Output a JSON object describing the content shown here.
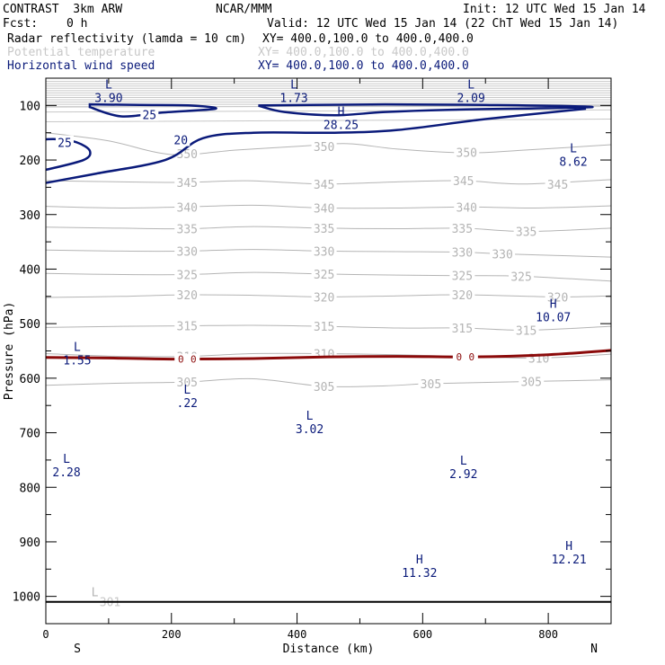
{
  "header": {
    "title_left": "CONTRAST  3km ARW",
    "title_center": "NCAR/MMM",
    "init": "Init: 12 UTC Wed 15 Jan 14",
    "fcst_label": "Fcst:",
    "fcst_value": "0 h",
    "valid": "Valid: 12 UTC Wed 15 Jan 14 (22 ChT Wed 15 Jan 14)",
    "fields": [
      {
        "name": "Radar reflectivity (lamda = 10 cm)",
        "xy": "XY= 400.0,100.0 to 400.0,400.0",
        "color": "#000000"
      },
      {
        "name": "Potential temperature",
        "xy": "XY= 400.0,100.0 to 400.0,400.0",
        "color": "#c8c8c8"
      },
      {
        "name": "Horizontal wind speed",
        "xy": "XY= 400.0,100.0 to 400.0,400.0",
        "color": "#0a1a7a"
      }
    ]
  },
  "colors": {
    "theta": "#b4b4b4",
    "wind": "#0a1a7a",
    "reflectivity": "#8b0a0a",
    "frame": "#000000"
  },
  "chart_data": {
    "type": "contour",
    "xlabel": "Distance (km)",
    "ylabel": "Pressure (hPa)",
    "xlim": [
      0,
      900
    ],
    "ylim": [
      1050,
      50
    ],
    "x_ticks": [
      0,
      200,
      400,
      600,
      800
    ],
    "y_ticks": [
      100,
      200,
      300,
      400,
      500,
      600,
      700,
      800,
      900,
      1000
    ],
    "x_end_labels": {
      "left": "S",
      "right": "N"
    },
    "theta_contours": [
      {
        "value": 350,
        "labels": [
          {
            "x": 225,
            "p": 188,
            "text": "350"
          },
          {
            "x": 443,
            "p": 175,
            "text": "350"
          },
          {
            "x": 670,
            "p": 186,
            "text": "350"
          }
        ],
        "line": [
          [
            0,
            150
          ],
          [
            100,
            165
          ],
          [
            200,
            190
          ],
          [
            300,
            182
          ],
          [
            400,
            175
          ],
          [
            480,
            170
          ],
          [
            560,
            180
          ],
          [
            670,
            187
          ],
          [
            760,
            182
          ],
          [
            900,
            172
          ]
        ]
      },
      {
        "value": 345,
        "labels": [
          {
            "x": 225,
            "p": 241,
            "text": "345"
          },
          {
            "x": 443,
            "p": 244,
            "text": "345"
          },
          {
            "x": 665,
            "p": 238,
            "text": "345"
          },
          {
            "x": 815,
            "p": 244,
            "text": "345"
          }
        ],
        "line": [
          [
            0,
            238
          ],
          [
            120,
            240
          ],
          [
            225,
            241
          ],
          [
            320,
            238
          ],
          [
            443,
            244
          ],
          [
            560,
            240
          ],
          [
            665,
            238
          ],
          [
            760,
            244
          ],
          [
            900,
            236
          ]
        ]
      },
      {
        "value": 340,
        "labels": [
          {
            "x": 225,
            "p": 286,
            "text": "340"
          },
          {
            "x": 443,
            "p": 288,
            "text": "340"
          },
          {
            "x": 670,
            "p": 286,
            "text": "340"
          }
        ],
        "line": [
          [
            0,
            285
          ],
          [
            120,
            288
          ],
          [
            225,
            286
          ],
          [
            330,
            283
          ],
          [
            443,
            288
          ],
          [
            560,
            288
          ],
          [
            670,
            286
          ],
          [
            780,
            288
          ],
          [
            900,
            284
          ]
        ]
      },
      {
        "value": 335,
        "labels": [
          {
            "x": 225,
            "p": 326,
            "text": "335"
          },
          {
            "x": 443,
            "p": 325,
            "text": "335"
          },
          {
            "x": 663,
            "p": 325,
            "text": "335"
          },
          {
            "x": 765,
            "p": 331,
            "text": "335"
          }
        ],
        "line": [
          [
            0,
            323
          ],
          [
            120,
            325
          ],
          [
            225,
            326
          ],
          [
            330,
            322
          ],
          [
            443,
            325
          ],
          [
            560,
            326
          ],
          [
            663,
            325
          ],
          [
            765,
            331
          ],
          [
            900,
            325
          ]
        ]
      },
      {
        "value": 330,
        "labels": [
          {
            "x": 225,
            "p": 367,
            "text": "330"
          },
          {
            "x": 443,
            "p": 367,
            "text": "330"
          },
          {
            "x": 663,
            "p": 369,
            "text": "330"
          },
          {
            "x": 727,
            "p": 372,
            "text": "330"
          }
        ],
        "line": [
          [
            0,
            365
          ],
          [
            120,
            367
          ],
          [
            225,
            367
          ],
          [
            330,
            364
          ],
          [
            443,
            367
          ],
          [
            560,
            368
          ],
          [
            663,
            369
          ],
          [
            727,
            372
          ],
          [
            900,
            378
          ]
        ]
      },
      {
        "value": 325,
        "labels": [
          {
            "x": 225,
            "p": 410,
            "text": "325"
          },
          {
            "x": 443,
            "p": 409,
            "text": "325"
          },
          {
            "x": 663,
            "p": 412,
            "text": "325"
          },
          {
            "x": 757,
            "p": 413,
            "text": "325"
          }
        ],
        "line": [
          [
            0,
            408
          ],
          [
            120,
            410
          ],
          [
            225,
            410
          ],
          [
            330,
            406
          ],
          [
            443,
            409
          ],
          [
            560,
            411
          ],
          [
            663,
            412
          ],
          [
            757,
            413
          ],
          [
            900,
            422
          ]
        ]
      },
      {
        "value": 320,
        "labels": [
          {
            "x": 225,
            "p": 447,
            "text": "320"
          },
          {
            "x": 443,
            "p": 451,
            "text": "320"
          },
          {
            "x": 663,
            "p": 447,
            "text": "320"
          },
          {
            "x": 815,
            "p": 451,
            "text": "320"
          }
        ],
        "line": [
          [
            0,
            452
          ],
          [
            120,
            450
          ],
          [
            225,
            447
          ],
          [
            330,
            448
          ],
          [
            443,
            451
          ],
          [
            560,
            449
          ],
          [
            663,
            447
          ],
          [
            815,
            451
          ],
          [
            900,
            449
          ]
        ]
      },
      {
        "value": 315,
        "labels": [
          {
            "x": 225,
            "p": 504,
            "text": "315"
          },
          {
            "x": 443,
            "p": 505,
            "text": "315"
          },
          {
            "x": 663,
            "p": 508,
            "text": "315"
          },
          {
            "x": 765,
            "p": 512,
            "text": "315"
          }
        ],
        "line": [
          [
            0,
            507
          ],
          [
            120,
            505
          ],
          [
            225,
            504
          ],
          [
            330,
            503
          ],
          [
            443,
            505
          ],
          [
            560,
            508
          ],
          [
            663,
            508
          ],
          [
            765,
            512
          ],
          [
            900,
            505
          ]
        ]
      },
      {
        "value": 310,
        "labels": [
          {
            "x": 225,
            "p": 560,
            "text": "310"
          },
          {
            "x": 443,
            "p": 555,
            "text": "310"
          },
          {
            "x": 785,
            "p": 563,
            "text": "310"
          }
        ],
        "line": [
          [
            0,
            555
          ],
          [
            120,
            560
          ],
          [
            225,
            560
          ],
          [
            330,
            555
          ],
          [
            443,
            555
          ],
          [
            560,
            557
          ],
          [
            663,
            560
          ],
          [
            785,
            563
          ],
          [
            900,
            556
          ]
        ]
      },
      {
        "value": 305,
        "labels": [
          {
            "x": 225,
            "p": 607,
            "text": "305"
          },
          {
            "x": 443,
            "p": 615,
            "text": "305"
          },
          {
            "x": 613,
            "p": 610,
            "text": "305"
          },
          {
            "x": 773,
            "p": 606,
            "text": "305"
          }
        ],
        "line": [
          [
            0,
            613
          ],
          [
            120,
            609
          ],
          [
            225,
            607
          ],
          [
            330,
            601
          ],
          [
            443,
            615
          ],
          [
            540,
            614
          ],
          [
            613,
            610
          ],
          [
            773,
            606
          ],
          [
            900,
            603
          ]
        ]
      }
    ],
    "theta_low": {
      "x": 78,
      "p": 1010,
      "text": "301"
    },
    "wind_contours": [
      {
        "value": 25,
        "labels": [
          {
            "x": 165,
            "p": 117,
            "text": "25"
          },
          {
            "x": 30,
            "p": 168,
            "text": "25"
          }
        ]
      },
      {
        "value": 20,
        "labels": [
          {
            "x": 215,
            "p": 163,
            "text": "20"
          }
        ]
      }
    ],
    "reflectivity_contour": {
      "value": "0",
      "labels": [
        {
          "x": 225,
          "p": 565,
          "text": "0"
        },
        {
          "x": 668,
          "p": 561,
          "text": "0"
        }
      ],
      "line": [
        [
          0,
          562
        ],
        [
          100,
          563
        ],
        [
          200,
          565
        ],
        [
          330,
          564
        ],
        [
          450,
          561
        ],
        [
          560,
          560
        ],
        [
          680,
          561
        ],
        [
          800,
          557
        ],
        [
          900,
          549
        ]
      ]
    },
    "extrema": [
      {
        "kind": "L",
        "x": 100,
        "p": 69,
        "value": "3.90",
        "color": "#0a1a7a"
      },
      {
        "kind": "L",
        "x": 395,
        "p": 69,
        "value": "1.73",
        "color": "#0a1a7a"
      },
      {
        "kind": "L",
        "x": 677,
        "p": 69,
        "value": "2.09",
        "color": "#0a1a7a"
      },
      {
        "kind": "H",
        "x": 470,
        "p": 118,
        "value": "28.25",
        "color": "#0a1a7a"
      },
      {
        "kind": "L",
        "x": 840,
        "p": 186,
        "value": "8.62",
        "color": "#0a1a7a"
      },
      {
        "kind": "H",
        "x": 808,
        "p": 471,
        "value": "10.07",
        "color": "#0a1a7a"
      },
      {
        "kind": "L",
        "x": 50,
        "p": 550,
        "value": "1.55",
        "color": "#0a1a7a"
      },
      {
        "kind": "L",
        "x": 225,
        "p": 628,
        "value": ".22",
        "color": "#0a1a7a"
      },
      {
        "kind": "L",
        "x": 420,
        "p": 676,
        "value": "3.02",
        "color": "#0a1a7a"
      },
      {
        "kind": "L",
        "x": 33,
        "p": 755,
        "value": "2.28",
        "color": "#0a1a7a"
      },
      {
        "kind": "L",
        "x": 665,
        "p": 758,
        "value": "2.92",
        "color": "#0a1a7a"
      },
      {
        "kind": "H",
        "x": 595,
        "p": 940,
        "value": "11.32",
        "color": "#0a1a7a"
      },
      {
        "kind": "H",
        "x": 833,
        "p": 915,
        "value": "12.21",
        "color": "#0a1a7a"
      },
      {
        "kind": "L",
        "x": 78,
        "p": 1000,
        "value": "",
        "color": "#b4b4b4"
      }
    ],
    "surface_p": 1010
  }
}
